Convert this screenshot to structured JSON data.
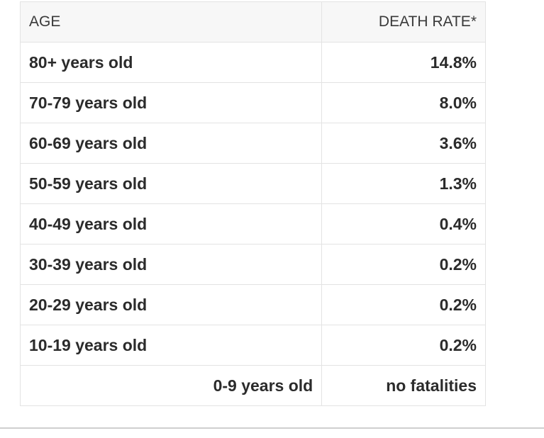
{
  "table": {
    "headers": {
      "age": "AGE",
      "death_rate": "DEATH RATE*"
    },
    "rows": [
      {
        "age": "80+ years old",
        "rate": "14.8%"
      },
      {
        "age": "70-79 years old",
        "rate": "8.0%"
      },
      {
        "age": "60-69 years old",
        "rate": "3.6%"
      },
      {
        "age": "50-59 years old",
        "rate": "1.3%"
      },
      {
        "age": "40-49 years old",
        "rate": "0.4%"
      },
      {
        "age": "30-39 years old",
        "rate": "0.2%"
      },
      {
        "age": "20-29 years old",
        "rate": "0.2%"
      },
      {
        "age": "10-19 years old",
        "rate": "0.2%"
      },
      {
        "age": "0-9 years old",
        "rate": "no fatalities"
      }
    ]
  }
}
